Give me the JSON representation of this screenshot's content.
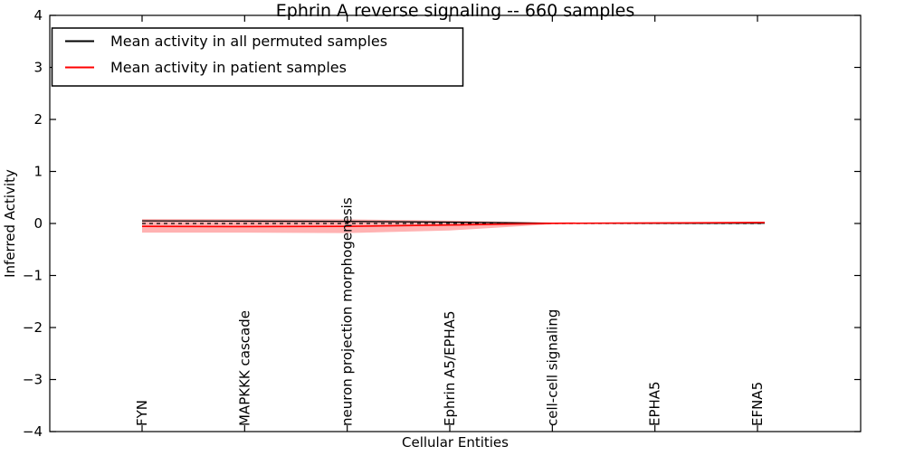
{
  "title": "Ephrin A  reverse signaling -- 660 samples",
  "colors": {
    "permuted_line": "#000000",
    "patient_line": "#ff0000",
    "band_fill": "#ff0000",
    "band_opacity": 0.3,
    "spine": "#000000",
    "background": "#ffffff"
  },
  "chart_data": {
    "type": "line",
    "title": "Ephrin A  reverse signaling -- 660 samples",
    "xlabel": "Cellular Entities",
    "ylabel": "Inferred Activity",
    "ylim": [
      -4,
      4
    ],
    "ytick_labels": [
      "4",
      "3",
      "2",
      "1",
      "0",
      "−1",
      "−2",
      "−3",
      "−4"
    ],
    "ytick_values": [
      4,
      3,
      2,
      1,
      0,
      -1,
      -2,
      -3,
      -4
    ],
    "categories": [
      "FYN",
      "MAPKKK cascade",
      "neuron projection morphogenesis",
      "Ephrin A5/EPHA5",
      "cell-cell signaling",
      "EPHA5",
      "EFNA5"
    ],
    "series": [
      {
        "name": "Mean activity in all permuted samples",
        "color": "#000000",
        "style": "solid",
        "width": 1.3,
        "values": [
          0.05,
          0.045,
          0.04,
          0.025,
          0.005,
          0.003,
          0.005
        ]
      },
      {
        "name": "Mean activity in patient samples",
        "color": "#ff0000",
        "style": "solid",
        "width": 1.6,
        "values": [
          -0.055,
          -0.06,
          -0.055,
          -0.03,
          0.003,
          0.01,
          0.018
        ]
      },
      {
        "name": "zero-reference",
        "color": "#000000",
        "style": "dashed",
        "width": 1.3,
        "in_legend": false,
        "values": [
          0,
          0,
          0,
          0,
          0,
          0,
          0
        ]
      }
    ],
    "band": {
      "label": "patient activity spread",
      "color": "#ff0000",
      "opacity": 0.3,
      "upper": [
        0.085,
        0.085,
        0.08,
        0.055,
        0.02,
        0.02,
        0.03
      ],
      "lower": [
        -0.175,
        -0.175,
        -0.185,
        -0.135,
        -0.015,
        -0.002,
        0.008
      ]
    },
    "legend": {
      "position": "upper-left",
      "entries": [
        "Mean activity in all permuted samples",
        "Mean activity in patient samples"
      ]
    },
    "grid": false
  }
}
